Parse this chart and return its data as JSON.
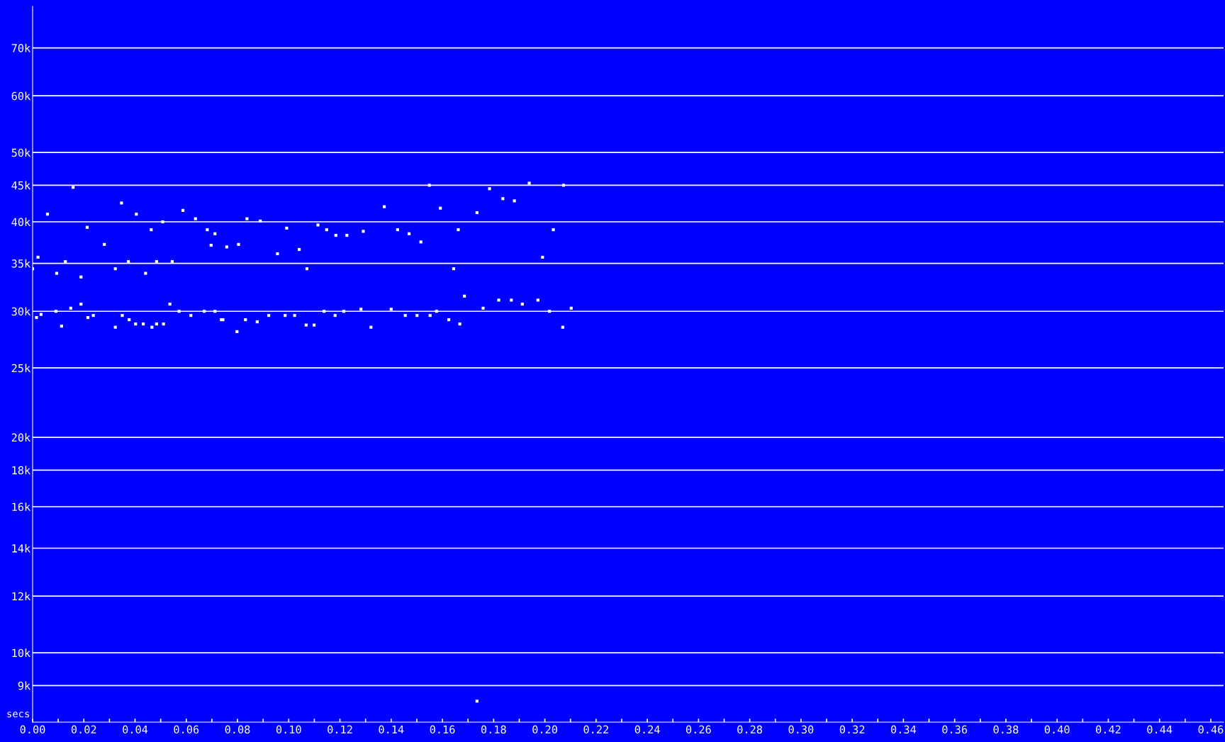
{
  "chart_data": {
    "type": "scatter",
    "xlabel": "secs",
    "color": "#ffffff",
    "marker": "square",
    "grid": "y",
    "log": "y",
    "xlim": [
      0,
      0.465
    ],
    "ylim": [
      8000,
      80000
    ],
    "xticks": [
      {
        "value": 0,
        "label": "0.00"
      },
      {
        "value": 0.01,
        "label": null
      },
      {
        "value": 0.02,
        "label": "0.02"
      },
      {
        "value": 0.03,
        "label": null
      },
      {
        "value": 0.04,
        "label": "0.04"
      },
      {
        "value": 0.05,
        "label": null
      },
      {
        "value": 0.06,
        "label": "0.06"
      },
      {
        "value": 0.07,
        "label": null
      },
      {
        "value": 0.08,
        "label": "0.08"
      },
      {
        "value": 0.09,
        "label": null
      },
      {
        "value": 0.1,
        "label": "0.10"
      },
      {
        "value": 0.11,
        "label": null
      },
      {
        "value": 0.12,
        "label": "0.12"
      },
      {
        "value": 0.13,
        "label": null
      },
      {
        "value": 0.14,
        "label": "0.14"
      },
      {
        "value": 0.15,
        "label": null
      },
      {
        "value": 0.16,
        "label": "0.16"
      },
      {
        "value": 0.17,
        "label": null
      },
      {
        "value": 0.18,
        "label": "0.18"
      },
      {
        "value": 0.19,
        "label": null
      },
      {
        "value": 0.2,
        "label": "0.20"
      },
      {
        "value": 0.21,
        "label": null
      },
      {
        "value": 0.22,
        "label": "0.22"
      },
      {
        "value": 0.23,
        "label": null
      },
      {
        "value": 0.24,
        "label": "0.24"
      },
      {
        "value": 0.25,
        "label": null
      },
      {
        "value": 0.26,
        "label": "0.26"
      },
      {
        "value": 0.27,
        "label": null
      },
      {
        "value": 0.28,
        "label": "0.28"
      },
      {
        "value": 0.29,
        "label": null
      },
      {
        "value": 0.3,
        "label": "0.30"
      },
      {
        "value": 0.31,
        "label": null
      },
      {
        "value": 0.32,
        "label": "0.32"
      },
      {
        "value": 0.33,
        "label": null
      },
      {
        "value": 0.34,
        "label": "0.34"
      },
      {
        "value": 0.35,
        "label": null
      },
      {
        "value": 0.36,
        "label": "0.36"
      },
      {
        "value": 0.37,
        "label": null
      },
      {
        "value": 0.38,
        "label": "0.38"
      },
      {
        "value": 0.39,
        "label": null
      },
      {
        "value": 0.4,
        "label": "0.40"
      },
      {
        "value": 0.41,
        "label": null
      },
      {
        "value": 0.42,
        "label": "0.42"
      },
      {
        "value": 0.43,
        "label": null
      },
      {
        "value": 0.44,
        "label": "0.44"
      },
      {
        "value": 0.45,
        "label": null
      },
      {
        "value": 0.46,
        "label": "0.46"
      }
    ],
    "yticks": [
      {
        "value": 9000,
        "label": "9k"
      },
      {
        "value": 10000,
        "label": "10k"
      },
      {
        "value": 12000,
        "label": "12k"
      },
      {
        "value": 14000,
        "label": "14k"
      },
      {
        "value": 16000,
        "label": "16k"
      },
      {
        "value": 18000,
        "label": "18k"
      },
      {
        "value": 20000,
        "label": "20k"
      },
      {
        "value": 25000,
        "label": "25k"
      },
      {
        "value": 30000,
        "label": "30k"
      },
      {
        "value": 35000,
        "label": "35k"
      },
      {
        "value": 40000,
        "label": "40k"
      },
      {
        "value": 45000,
        "label": "45k"
      },
      {
        "value": 50000,
        "label": "50k"
      },
      {
        "value": 60000,
        "label": "60k"
      },
      {
        "value": 70000,
        "label": "70k"
      }
    ],
    "x": [
      0,
      0.0015,
      0.0021,
      0.0033,
      0.0058,
      0.0091,
      0.0094,
      0.0113,
      0.0128,
      0.0149,
      0.0158,
      0.0189,
      0.0189,
      0.0216,
      0.0213,
      0.0237,
      0.028,
      0.0323,
      0.0323,
      0.035,
      0.0347,
      0.0377,
      0.0374,
      0.0402,
      0.0405,
      0.0432,
      0.0441,
      0.0466,
      0.0463,
      0.0484,
      0.0484,
      0.0511,
      0.0508,
      0.0536,
      0.0545,
      0.0572,
      0.0587,
      0.0618,
      0.0636,
      0.067,
      0.0682,
      0.0712,
      0.0697,
      0.0737,
      0.0712,
      0.0743,
      0.0758,
      0.0798,
      0.0804,
      0.0831,
      0.0837,
      0.0877,
      0.0889,
      0.0922,
      0.0956,
      0.0986,
      0.0992,
      0.1023,
      0.1041,
      0.1068,
      0.1071,
      0.1099,
      0.1114,
      0.1138,
      0.1148,
      0.1181,
      0.1184,
      0.1215,
      0.1227,
      0.1282,
      0.1291,
      0.1321,
      0.1373,
      0.14,
      0.1425,
      0.1455,
      0.147,
      0.1501,
      0.1516,
      0.1552,
      0.1549,
      0.1577,
      0.1592,
      0.1625,
      0.1644,
      0.1668,
      0.1662,
      0.1686,
      0.1735,
      0.1759,
      0.1784,
      0.182,
      0.1836,
      0.1869,
      0.1881,
      0.1912,
      0.1939,
      0.1973,
      0.1991,
      0.2018,
      0.2033,
      0.207,
      0.2073,
      0.2103,
      0.1735
    ],
    "values": [
      34400,
      29400,
      35700,
      29700,
      41000,
      30000,
      33900,
      28600,
      35200,
      30300,
      44700,
      30700,
      33500,
      29400,
      39300,
      29600,
      37200,
      28500,
      34400,
      29600,
      42500,
      29200,
      35200,
      28800,
      41000,
      28800,
      33900,
      28500,
      39000,
      28800,
      35200,
      28800,
      40000,
      30700,
      35200,
      30000,
      41500,
      29600,
      40400,
      30000,
      39000,
      30000,
      37100,
      29200,
      38500,
      29200,
      36900,
      28100,
      37200,
      29200,
      40400,
      29000,
      40100,
      29600,
      36100,
      29600,
      39200,
      29600,
      36600,
      28700,
      34400,
      28700,
      39600,
      30000,
      39000,
      29600,
      38300,
      30000,
      38300,
      30200,
      38800,
      28500,
      42000,
      30200,
      39000,
      29600,
      38500,
      29600,
      37500,
      29600,
      45000,
      30000,
      41800,
      29200,
      34400,
      28800,
      39000,
      31500,
      41200,
      30300,
      44500,
      31100,
      43100,
      31100,
      42800,
      30700,
      45300,
      31100,
      35700,
      30000,
      39000,
      28500,
      45000,
      30300,
      8560
    ]
  }
}
